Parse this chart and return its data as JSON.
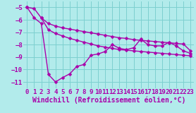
{
  "background_color": "#b2ebeb",
  "grid_color": "#7dd0d0",
  "line_color": "#aa00aa",
  "marker": "D",
  "marker_size": 2.5,
  "line_width": 1.0,
  "xlabel": "Windchill (Refroidissement éolien,°C)",
  "xlabel_fontsize": 7,
  "tick_fontsize": 6.5,
  "ylim": [
    -11.5,
    -4.5
  ],
  "xlim": [
    -0.5,
    23.5
  ],
  "yticks": [
    -11,
    -10,
    -9,
    -8,
    -7,
    -6,
    -5
  ],
  "xticks": [
    0,
    1,
    2,
    3,
    4,
    5,
    6,
    7,
    8,
    9,
    10,
    11,
    12,
    13,
    14,
    15,
    16,
    17,
    18,
    19,
    20,
    21,
    22,
    23
  ],
  "series": [
    {
      "x": [
        0,
        1,
        2,
        3,
        4,
        5,
        6,
        7,
        8,
        9,
        10,
        11,
        12,
        13,
        14,
        15,
        16,
        17,
        18,
        19,
        20,
        21,
        22,
        23
      ],
      "y": [
        -5.0,
        -5.1,
        -5.85,
        -6.3,
        -6.5,
        -6.65,
        -6.75,
        -6.85,
        -6.95,
        -7.05,
        -7.15,
        -7.25,
        -7.35,
        -7.45,
        -7.5,
        -7.6,
        -7.65,
        -7.7,
        -7.75,
        -7.8,
        -7.85,
        -7.9,
        -7.95,
        -8.5
      ]
    },
    {
      "x": [
        2,
        3,
        4,
        5,
        6,
        7,
        8,
        9,
        10,
        11,
        12,
        13,
        14,
        15,
        16,
        17,
        18,
        19,
        20,
        21,
        22,
        23
      ],
      "y": [
        -5.85,
        -6.8,
        -7.1,
        -7.3,
        -7.5,
        -7.65,
        -7.8,
        -7.95,
        -8.1,
        -8.2,
        -8.3,
        -8.4,
        -8.45,
        -8.5,
        -8.55,
        -8.6,
        -8.65,
        -8.7,
        -8.75,
        -8.8,
        -8.85,
        -8.9
      ]
    },
    {
      "x": [
        0,
        1,
        2,
        3,
        4,
        5,
        6,
        7,
        8,
        9,
        10,
        11,
        12,
        13,
        14,
        15,
        16,
        17,
        18,
        19,
        20,
        21,
        22,
        23
      ],
      "y": [
        -5.0,
        -5.85,
        -6.3,
        -10.4,
        -11.0,
        -10.65,
        -10.35,
        -9.75,
        -9.6,
        -8.85,
        -8.75,
        -8.55,
        -8.0,
        -8.3,
        -8.4,
        -8.25,
        -7.55,
        -8.0,
        -8.1,
        -8.1,
        -7.8,
        -8.1,
        -8.5,
        -8.7
      ]
    }
  ]
}
